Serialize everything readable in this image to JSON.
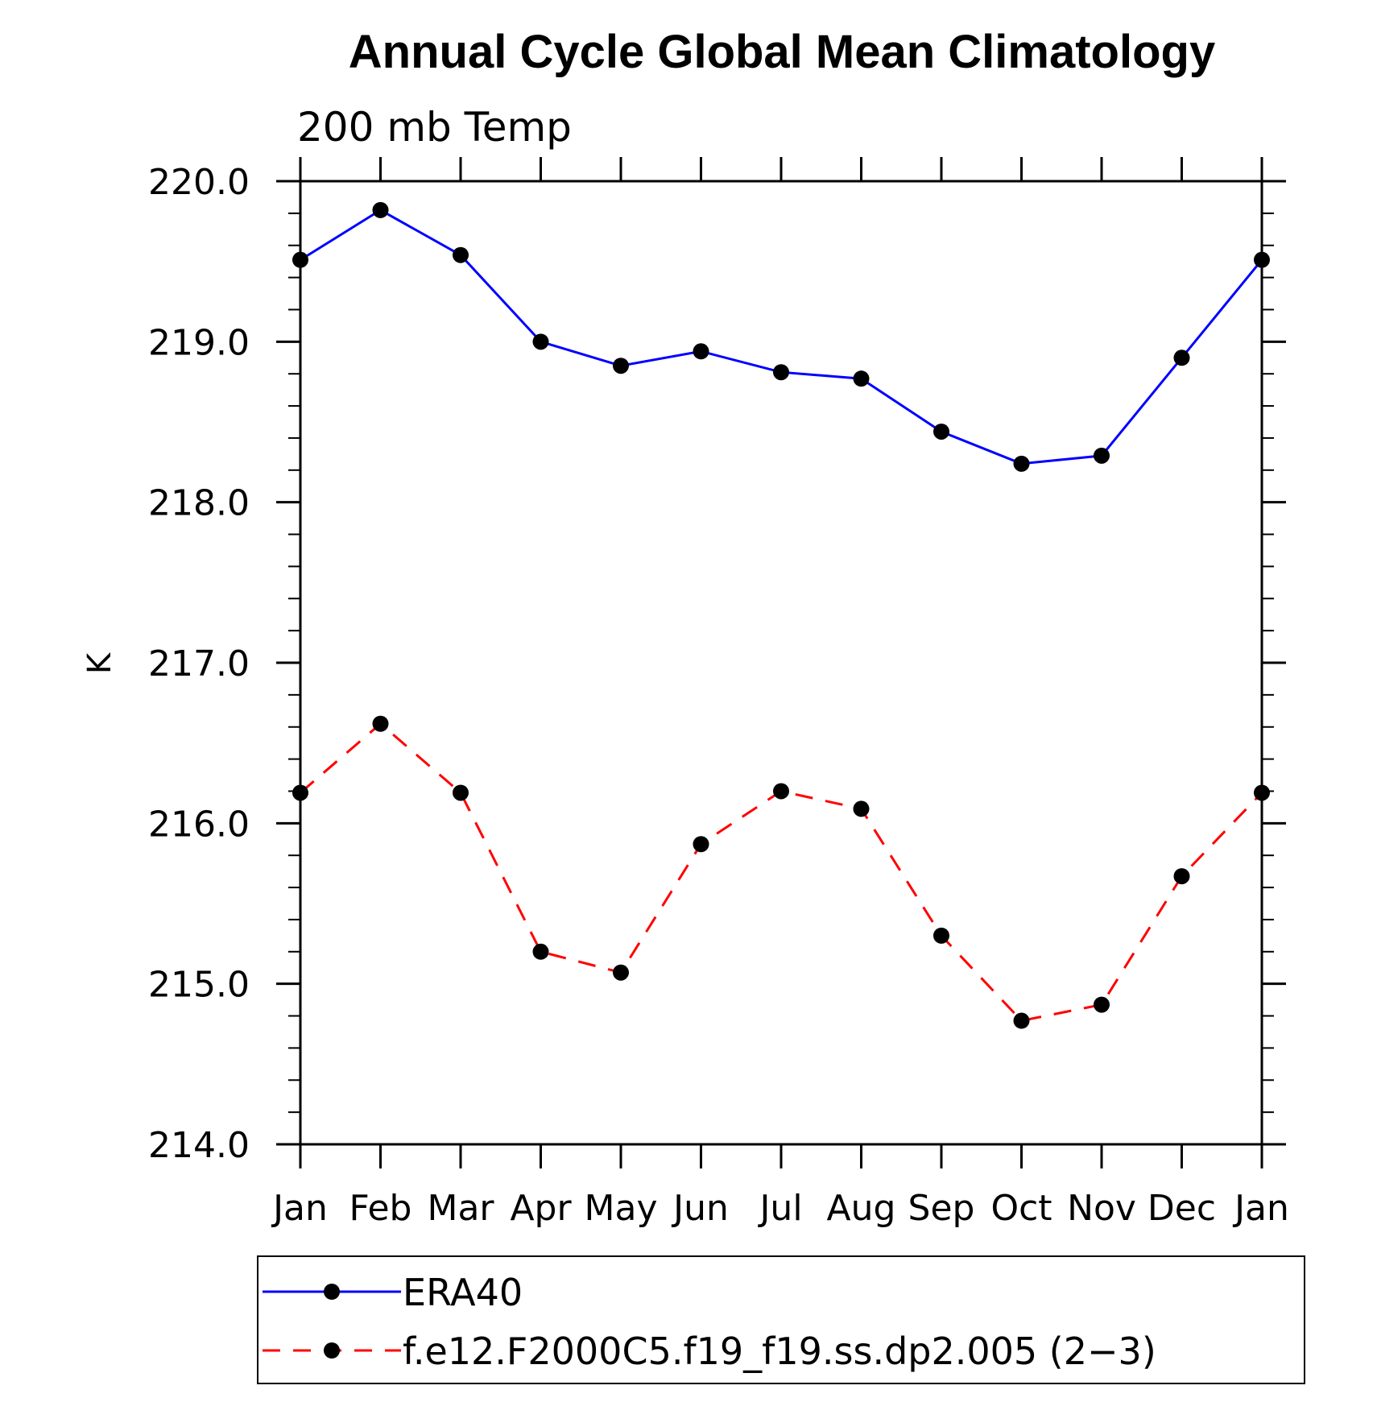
{
  "chart_data": {
    "type": "line",
    "title": "Annual Cycle Global Mean Climatology",
    "subtitle": "200 mb Temp",
    "xlabel": "",
    "ylabel": "K",
    "categories": [
      "Jan",
      "Feb",
      "Mar",
      "Apr",
      "May",
      "Jun",
      "Jul",
      "Aug",
      "Sep",
      "Oct",
      "Nov",
      "Dec",
      "Jan"
    ],
    "ylim": [
      214.0,
      220.0
    ],
    "yticks": [
      "214.0",
      "215.0",
      "216.0",
      "217.0",
      "218.0",
      "219.0",
      "220.0"
    ],
    "grid": false,
    "legend_position": "bottom",
    "series": [
      {
        "name": "ERA40",
        "color": "#0000ff",
        "dash": "solid",
        "values": [
          219.51,
          219.82,
          219.54,
          219.0,
          218.85,
          218.94,
          218.81,
          218.77,
          218.44,
          218.24,
          218.29,
          218.9,
          219.51
        ]
      },
      {
        "name": "f.e12.F2000C5.f19_f19.ss.dp2.005 (2−3)",
        "color": "#ff0000",
        "dash": "dashed",
        "values": [
          216.19,
          216.62,
          216.19,
          215.2,
          215.07,
          215.87,
          216.2,
          216.09,
          215.3,
          214.77,
          214.87,
          215.67,
          216.19
        ]
      }
    ]
  }
}
